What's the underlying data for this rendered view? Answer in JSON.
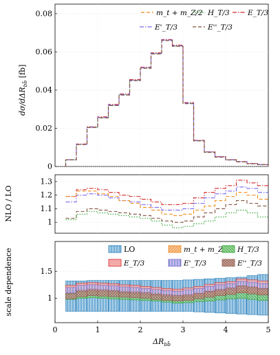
{
  "chart_data": [
    {
      "type": "line",
      "title": "",
      "xlabel": "",
      "ylabel": "dσ/dΔR_{bb̄} [fb]",
      "ylabel_display": "dσ/dΔR",
      "ylabel_sub": "bb̄",
      "ylabel_unit": " [fb]",
      "xlim": [
        0,
        5
      ],
      "ylim": [
        0,
        0.085
      ],
      "yticks": [
        "0",
        "0.02",
        "0.04",
        "0.06",
        "0.08"
      ],
      "grid": true,
      "legend_position": "top",
      "bin_edges": [
        0.25,
        0.5,
        0.75,
        1.0,
        1.25,
        1.5,
        1.75,
        2.0,
        2.25,
        2.5,
        2.75,
        3.0,
        3.25,
        3.5,
        3.75,
        4.0,
        4.25,
        4.5,
        4.75,
        5.0
      ],
      "series": [
        {
          "name": "m_t + m_Z/2",
          "color": "#f28e1e",
          "dash": "5,3",
          "values": [
            0.0035,
            0.0115,
            0.0205,
            0.0255,
            0.032,
            0.0375,
            0.045,
            0.0515,
            0.059,
            0.066,
            0.063,
            0.033,
            0.0135,
            0.0075,
            0.005,
            0.0035,
            0.0025,
            0.0015,
            0.001
          ]
        },
        {
          "name": "H_T/3",
          "color": "#2ca02c",
          "dash": "1.5,2",
          "values": [
            0.0035,
            0.0115,
            0.0205,
            0.0255,
            0.032,
            0.0375,
            0.045,
            0.0515,
            0.059,
            0.066,
            0.063,
            0.033,
            0.0135,
            0.0075,
            0.005,
            0.0035,
            0.0025,
            0.0015,
            0.001
          ]
        },
        {
          "name": "E_T/3",
          "color": "#d62728",
          "dash": "6,2,1.5,2",
          "values": [
            0.0035,
            0.0118,
            0.0208,
            0.026,
            0.0325,
            0.038,
            0.0455,
            0.052,
            0.0595,
            0.0665,
            0.0635,
            0.0335,
            0.0137,
            0.0077,
            0.0052,
            0.0036,
            0.0026,
            0.0016,
            0.001
          ]
        },
        {
          "name": "E'_T/3",
          "color": "#7b68ee",
          "dash": "6,2,1.5,2",
          "values": [
            0.0035,
            0.0116,
            0.0206,
            0.0257,
            0.0322,
            0.0377,
            0.0452,
            0.0517,
            0.0592,
            0.0662,
            0.0632,
            0.0332,
            0.0136,
            0.0076,
            0.0051,
            0.0035,
            0.0025,
            0.0015,
            0.001
          ]
        },
        {
          "name": "E''_T/3",
          "color": "#7f4f3f",
          "dash": "5,3",
          "values": [
            0.0035,
            0.0115,
            0.0204,
            0.0254,
            0.0319,
            0.0374,
            0.0449,
            0.0514,
            0.0589,
            0.0659,
            0.0629,
            0.0329,
            0.0134,
            0.0074,
            0.0049,
            0.0034,
            0.0024,
            0.0014,
            0.001
          ]
        }
      ]
    },
    {
      "type": "line",
      "title": "",
      "xlabel": "",
      "ylabel": "NLO / LO",
      "xlim": [
        0,
        5
      ],
      "ylim": [
        0.92,
        1.35
      ],
      "yticks": [
        "1",
        "1.1",
        "1.2",
        "1.3"
      ],
      "grid": true,
      "bin_edges": [
        0.25,
        0.5,
        0.75,
        1.0,
        1.25,
        1.5,
        1.75,
        2.0,
        2.25,
        2.5,
        2.75,
        3.0,
        3.25,
        3.5,
        3.75,
        4.0,
        4.25,
        4.5,
        4.75,
        5.0
      ],
      "series": [
        {
          "name": "E_T/3",
          "color": "#d62728",
          "dash": "6,2,1.5,2",
          "values": [
            1.19,
            1.24,
            1.25,
            1.24,
            1.22,
            1.2,
            1.19,
            1.17,
            1.15,
            1.13,
            1.13,
            1.14,
            1.18,
            1.22,
            1.25,
            1.27,
            1.31,
            1.29,
            1.27
          ]
        },
        {
          "name": "E'_T/3",
          "color": "#7b68ee",
          "dash": "6,2,1.5,2",
          "values": [
            1.15,
            1.2,
            1.21,
            1.2,
            1.18,
            1.16,
            1.15,
            1.13,
            1.11,
            1.09,
            1.09,
            1.1,
            1.14,
            1.18,
            1.21,
            1.23,
            1.26,
            1.25,
            1.22
          ]
        },
        {
          "name": "m_t + m_Z/2",
          "color": "#f28e1e",
          "dash": "5,3",
          "values": [
            1.19,
            1.23,
            1.23,
            1.21,
            1.19,
            1.16,
            1.14,
            1.11,
            1.09,
            1.06,
            1.05,
            1.06,
            1.09,
            1.12,
            1.16,
            1.19,
            1.22,
            1.2,
            1.17
          ]
        },
        {
          "name": "E''_T/3",
          "color": "#7f4f3f",
          "dash": "5,3",
          "values": [
            1.03,
            1.08,
            1.1,
            1.09,
            1.08,
            1.07,
            1.06,
            1.05,
            1.03,
            1.01,
            1.0,
            1.01,
            1.04,
            1.07,
            1.1,
            1.13,
            1.16,
            1.14,
            1.12
          ]
        },
        {
          "name": "H_T/3",
          "color": "#2ca02c",
          "dash": "1.5,2",
          "values": [
            1.02,
            1.06,
            1.08,
            1.07,
            1.06,
            1.05,
            1.04,
            1.03,
            1.01,
            0.98,
            0.96,
            0.97,
            0.99,
            1.01,
            1.04,
            1.07,
            1.09,
            1.07,
            1.04
          ]
        }
      ]
    },
    {
      "type": "area",
      "title": "",
      "xlabel": "ΔR_{bb̄}",
      "xlabel_main": "ΔR",
      "xlabel_sub": "bb̄",
      "ylabel": "scale dependence",
      "xlim": [
        0,
        5
      ],
      "ylim": [
        0.55,
        2.05
      ],
      "xticks": [
        "0",
        "1",
        "2",
        "3",
        "4",
        "5"
      ],
      "yticks": [
        "1",
        "1.5"
      ],
      "grid": true,
      "legend_position": "top-right",
      "bin_edges": [
        0.25,
        0.5,
        0.75,
        1.0,
        1.25,
        1.5,
        1.75,
        2.0,
        2.25,
        2.5,
        2.75,
        3.0,
        3.25,
        3.5,
        3.75,
        4.0,
        4.25,
        4.5,
        4.75,
        5.0
      ],
      "bands": [
        {
          "name": "LO",
          "fill": "#a6cde8",
          "stroke": "#1f77b4",
          "hatch": "vlines",
          "lo": [
            0.76,
            0.76,
            0.76,
            0.76,
            0.76,
            0.76,
            0.76,
            0.76,
            0.76,
            0.76,
            0.76,
            0.76,
            0.75,
            0.74,
            0.73,
            0.72,
            0.71,
            0.7,
            0.69
          ],
          "hi": [
            1.32,
            1.32,
            1.33,
            1.33,
            1.33,
            1.33,
            1.33,
            1.33,
            1.33,
            1.33,
            1.33,
            1.34,
            1.35,
            1.36,
            1.37,
            1.38,
            1.39,
            1.42,
            1.44
          ]
        },
        {
          "name": "m_t + m_Z/2",
          "fill": "#fbc99a",
          "stroke": "#f28e1e",
          "hatch": "diag",
          "lo": [
            1.1,
            1.12,
            1.12,
            1.11,
            1.1,
            1.09,
            1.08,
            1.07,
            1.05,
            1.03,
            1.02,
            1.03,
            1.05,
            1.06,
            1.08,
            1.09,
            1.1,
            1.09,
            1.08
          ],
          "hi": [
            1.22,
            1.26,
            1.26,
            1.25,
            1.24,
            1.22,
            1.21,
            1.19,
            1.17,
            1.15,
            1.14,
            1.15,
            1.18,
            1.21,
            1.24,
            1.26,
            1.3,
            1.28,
            1.26
          ]
        },
        {
          "name": "H_T/3",
          "fill": "#9fd89f",
          "stroke": "#2ca02c",
          "hatch": "diag2",
          "lo": [
            0.98,
            1.0,
            1.01,
            1.0,
            0.99,
            0.98,
            0.97,
            0.96,
            0.95,
            0.93,
            0.91,
            0.92,
            0.94,
            0.95,
            0.97,
            0.99,
            1.0,
            0.98,
            0.96
          ],
          "hi": [
            1.08,
            1.11,
            1.12,
            1.11,
            1.1,
            1.09,
            1.08,
            1.07,
            1.05,
            1.03,
            1.01,
            1.02,
            1.04,
            1.06,
            1.09,
            1.11,
            1.13,
            1.11,
            1.09
          ]
        },
        {
          "name": "E_T/3",
          "fill": "#f4a9a9",
          "stroke": "#d62728",
          "hatch": "none",
          "lo": [
            1.14,
            1.17,
            1.18,
            1.17,
            1.16,
            1.14,
            1.13,
            1.11,
            1.1,
            1.08,
            1.07,
            1.08,
            1.11,
            1.14,
            1.17,
            1.19,
            1.22,
            1.21,
            1.19
          ],
          "hi": [
            1.24,
            1.28,
            1.29,
            1.28,
            1.27,
            1.25,
            1.24,
            1.22,
            1.2,
            1.18,
            1.17,
            1.19,
            1.22,
            1.26,
            1.29,
            1.31,
            1.36,
            1.34,
            1.32
          ]
        },
        {
          "name": "E'_T/3",
          "fill": "#cdb8ef",
          "stroke": "#8a63d2",
          "hatch": "vlines",
          "lo": [
            1.1,
            1.13,
            1.14,
            1.13,
            1.12,
            1.1,
            1.09,
            1.07,
            1.06,
            1.04,
            1.03,
            1.04,
            1.07,
            1.1,
            1.13,
            1.15,
            1.18,
            1.17,
            1.15
          ],
          "hi": [
            1.2,
            1.24,
            1.25,
            1.24,
            1.23,
            1.21,
            1.2,
            1.18,
            1.16,
            1.14,
            1.13,
            1.15,
            1.18,
            1.22,
            1.25,
            1.27,
            1.31,
            1.29,
            1.27
          ]
        },
        {
          "name": "E''_T/3",
          "fill": "#c9a39a",
          "stroke": "#8c564b",
          "hatch": "cross",
          "lo": [
            0.99,
            1.03,
            1.05,
            1.04,
            1.03,
            1.02,
            1.01,
            1.0,
            0.98,
            0.96,
            0.95,
            0.96,
            0.99,
            1.02,
            1.05,
            1.07,
            1.1,
            1.08,
            1.06
          ],
          "hi": [
            1.09,
            1.14,
            1.16,
            1.15,
            1.14,
            1.12,
            1.11,
            1.1,
            1.08,
            1.06,
            1.05,
            1.06,
            1.09,
            1.13,
            1.16,
            1.19,
            1.23,
            1.21,
            1.18
          ]
        }
      ]
    }
  ]
}
